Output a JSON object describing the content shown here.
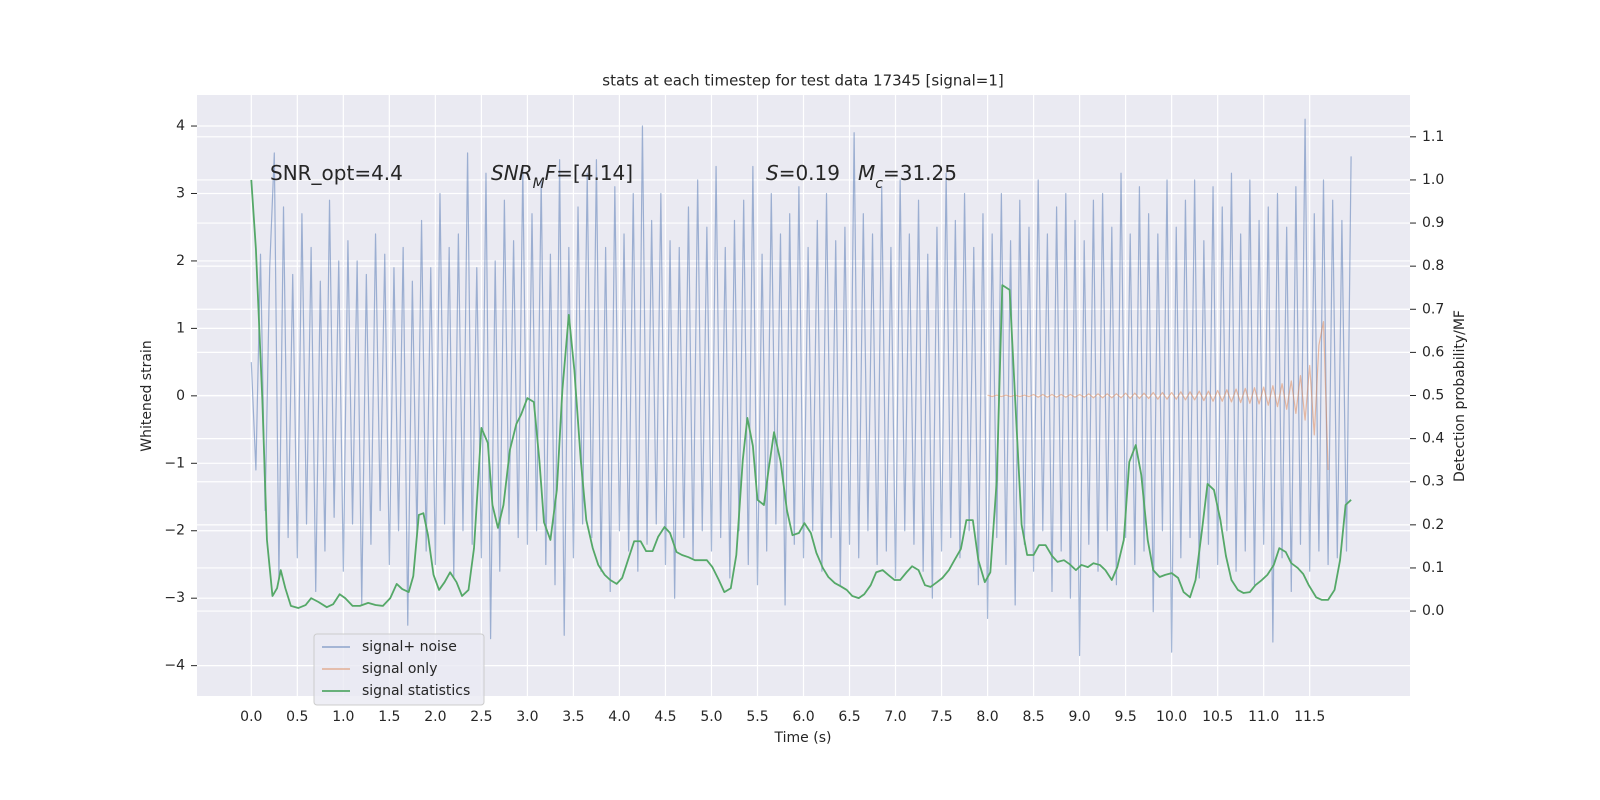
{
  "chart_data": {
    "type": "line",
    "title": "stats at each timestep for test data 17345 [signal=1]",
    "xlabel": "Time (s)",
    "ylabel": "Whitened strain",
    "y2label": "Detection probability/MF",
    "xlim": [
      -0.59,
      12.59
    ],
    "ylim": [
      -4.45,
      4.46
    ],
    "y2lim": [
      -0.197,
      1.197
    ],
    "xticks": [
      {
        "value": 0,
        "label": "0.0"
      },
      0.5,
      {
        "value": 1,
        "label": "1.0"
      },
      1.5,
      {
        "value": 2,
        "label": "2.0"
      },
      2.5,
      {
        "value": 3,
        "label": "3.0"
      },
      3.5,
      {
        "value": 4,
        "label": "4.0"
      },
      4.5,
      {
        "value": 5,
        "label": "5.0"
      },
      5.5,
      {
        "value": 6,
        "label": "6.0"
      },
      6.5,
      {
        "value": 7,
        "label": "7.0"
      },
      7.5,
      {
        "value": 8,
        "label": "8.0"
      },
      8.5,
      {
        "value": 9,
        "label": "9.0"
      },
      9.5,
      {
        "value": 10,
        "label": "10.0"
      },
      10.5,
      {
        "value": 11,
        "label": "11.0"
      },
      11.5
    ],
    "yticks": [
      {
        "value": -4,
        "label": "−4"
      },
      {
        "value": -3,
        "label": "−3"
      },
      {
        "value": -2,
        "label": "−2"
      },
      {
        "value": -1,
        "label": "−1"
      },
      0,
      1,
      2,
      3,
      4
    ],
    "y2ticks": [
      {
        "value": 0,
        "label": "0.0"
      },
      0.1,
      0.2,
      0.3,
      0.4,
      0.5,
      0.6,
      0.7,
      0.8,
      0.9,
      {
        "value": 1,
        "label": "1.0"
      },
      1.1
    ],
    "grid": true,
    "legend_loc": "lower left",
    "annotations": [
      {
        "parts": [
          {
            "text": "SNR_opt=4.4"
          }
        ]
      },
      {
        "parts": [
          {
            "text": "SNR",
            "style": "italic"
          },
          {
            "text": "M",
            "style": "italic-sub"
          },
          {
            "text": "F",
            "style": "italic"
          },
          {
            "text": "=[4.14]"
          }
        ]
      },
      {
        "parts": [
          {
            "text": "S",
            "style": "italic"
          },
          {
            "text": "=0.19"
          }
        ]
      },
      {
        "parts": [
          {
            "text": "M",
            "style": "italic"
          },
          {
            "text": "c",
            "style": "italic-sub"
          },
          {
            "text": "=31.25"
          }
        ]
      }
    ],
    "series": [
      {
        "name": "signal+ noise",
        "color": "#4c72b0",
        "alpha": 0.5,
        "x": [
          0,
          0.05,
          0.1,
          0.15,
          0.2,
          0.25,
          0.3,
          0.35,
          0.4,
          0.45,
          0.5,
          0.55,
          0.6,
          0.65,
          0.7,
          0.75,
          0.8,
          0.85,
          0.9,
          0.95,
          1,
          1.05,
          1.1,
          1.15,
          1.2,
          1.25,
          1.3,
          1.35,
          1.4,
          1.45,
          1.5,
          1.55,
          1.6,
          1.65,
          1.7,
          1.75,
          1.8,
          1.85,
          1.9,
          1.95,
          2,
          2.05,
          2.1,
          2.15,
          2.2,
          2.25,
          2.3,
          2.35,
          2.4,
          2.45,
          2.5,
          2.55,
          2.6,
          2.65,
          2.7,
          2.75,
          2.8,
          2.85,
          2.9,
          2.95,
          3,
          3.05,
          3.1,
          3.15,
          3.2,
          3.25,
          3.3,
          3.35,
          3.4,
          3.45,
          3.5,
          3.55,
          3.6,
          3.65,
          3.7,
          3.75,
          3.8,
          3.85,
          3.9,
          3.95,
          4,
          4.05,
          4.1,
          4.15,
          4.2,
          4.25,
          4.3,
          4.35,
          4.4,
          4.45,
          4.5,
          4.55,
          4.6,
          4.65,
          4.7,
          4.75,
          4.8,
          4.85,
          4.9,
          4.95,
          5,
          5.05,
          5.1,
          5.15,
          5.2,
          5.25,
          5.3,
          5.35,
          5.4,
          5.45,
          5.5,
          5.55,
          5.6,
          5.65,
          5.7,
          5.75,
          5.8,
          5.85,
          5.9,
          5.95,
          6,
          6.05,
          6.1,
          6.15,
          6.2,
          6.25,
          6.3,
          6.35,
          6.4,
          6.45,
          6.5,
          6.55,
          6.6,
          6.65,
          6.7,
          6.75,
          6.8,
          6.85,
          6.9,
          6.95,
          7,
          7.05,
          7.1,
          7.15,
          7.2,
          7.25,
          7.3,
          7.35,
          7.4,
          7.45,
          7.5,
          7.55,
          7.6,
          7.65,
          7.7,
          7.75,
          7.8,
          7.85,
          7.9,
          7.95,
          8,
          8.05,
          8.1,
          8.15,
          8.2,
          8.25,
          8.3,
          8.35,
          8.4,
          8.45,
          8.5,
          8.55,
          8.6,
          8.65,
          8.7,
          8.75,
          8.8,
          8.85,
          8.9,
          8.95,
          9,
          9.05,
          9.1,
          9.15,
          9.2,
          9.25,
          9.3,
          9.35,
          9.4,
          9.45,
          9.5,
          9.55,
          9.6,
          9.65,
          9.7,
          9.75,
          9.8,
          9.85,
          9.9,
          9.95,
          10,
          10.05,
          10.1,
          10.15,
          10.2,
          10.25,
          10.3,
          10.35,
          10.4,
          10.45,
          10.5,
          10.55,
          10.6,
          10.65,
          10.7,
          10.75,
          10.8,
          10.85,
          10.9,
          10.95,
          11,
          11.05,
          11.1,
          11.15,
          11.2,
          11.25,
          11.3,
          11.35,
          11.4,
          11.45,
          11.5,
          11.55,
          11.6,
          11.65,
          11.7,
          11.75,
          11.8,
          11.85,
          11.9,
          11.95
        ],
        "values": [
          0.5,
          -1.1,
          2.1,
          -1.7,
          1.9,
          3.6,
          -2.7,
          2.8,
          -2.1,
          1.8,
          -2.4,
          2.7,
          -1.9,
          2.2,
          -2.9,
          1.7,
          -2.3,
          2.9,
          -1.8,
          2.0,
          -2.6,
          2.3,
          -1.9,
          2.0,
          -3.1,
          1.8,
          -2.2,
          2.4,
          -1.7,
          2.1,
          -2.5,
          1.9,
          -2.0,
          2.2,
          -3.4,
          1.7,
          -2.1,
          2.6,
          -2.3,
          1.9,
          -2.5,
          3.0,
          -1.9,
          2.2,
          -2.7,
          2.4,
          -2.0,
          3.6,
          -2.2,
          1.9,
          -2.4,
          3.3,
          -3.6,
          2.0,
          -2.6,
          2.9,
          -1.9,
          2.3,
          -2.1,
          3.4,
          -2.2,
          2.7,
          -2.0,
          3.2,
          -2.5,
          2.1,
          -2.8,
          3.5,
          -3.55,
          2.2,
          -2.4,
          2.8,
          -1.9,
          3.3,
          -2.1,
          3.5,
          -2.6,
          2.2,
          -2.9,
          3.1,
          -2.0,
          2.4,
          -2.3,
          3.0,
          -2.6,
          4.0,
          -2.2,
          2.6,
          -1.9,
          3.0,
          -2.5,
          2.3,
          -3.0,
          2.2,
          -2.1,
          2.8,
          -2.4,
          3.2,
          -2.0,
          2.5,
          -2.3,
          3.4,
          -2.1,
          2.2,
          -2.7,
          2.6,
          -2.0,
          2.9,
          -2.5,
          3.4,
          -2.8,
          2.1,
          -2.3,
          3.0,
          -1.9,
          2.4,
          -3.1,
          2.7,
          -2.2,
          3.1,
          -2.4,
          2.2,
          -2.0,
          2.6,
          -2.6,
          3.0,
          -2.1,
          2.3,
          -2.8,
          2.5,
          -2.2,
          3.9,
          -2.4,
          2.7,
          -2.0,
          2.4,
          -2.5,
          3.1,
          -2.3,
          2.2,
          -2.7,
          3.2,
          -2.0,
          2.4,
          -2.2,
          2.9,
          -2.6,
          2.1,
          -3.0,
          2.5,
          -2.3,
          3.3,
          -2.1,
          2.6,
          -2.4,
          3.0,
          -2.0,
          2.2,
          -2.8,
          2.7,
          -3.3,
          2.4,
          -2.1,
          3.0,
          -2.5,
          2.3,
          -3.1,
          2.9,
          -2.2,
          2.5,
          -2.6,
          3.2,
          -2.0,
          2.4,
          -2.9,
          2.8,
          -2.3,
          3.0,
          -3.0,
          2.6,
          -3.85,
          2.3,
          -2.2,
          2.9,
          -2.6,
          3.0,
          -2.0,
          2.5,
          -2.8,
          3.3,
          -2.1,
          2.4,
          -2.5,
          3.1,
          -2.3,
          2.7,
          -3.2,
          2.4,
          -2.0,
          3.2,
          -3.8,
          2.5,
          -2.4,
          2.9,
          -2.1,
          3.2,
          -2.7,
          2.3,
          -2.2,
          3.1,
          -2.5,
          2.8,
          -2.0,
          3.3,
          -2.6,
          2.4,
          -2.3,
          3.2,
          -2.8,
          2.6,
          -2.2,
          2.8,
          -3.65,
          3.0,
          -2.4,
          2.5,
          -2.9,
          3.1,
          -2.2,
          4.1,
          -2.6,
          2.7,
          -2.3,
          3.2,
          -2.5,
          2.9,
          -2.4,
          2.6,
          -2.3,
          3.55
        ]
      },
      {
        "name": "signal only",
        "color": "#dd8452",
        "alpha": 0.5,
        "x": [
          8,
          8.05,
          8.1,
          8.15,
          8.2,
          8.25,
          8.3,
          8.35,
          8.4,
          8.45,
          8.5,
          8.55,
          8.6,
          8.65,
          8.7,
          8.75,
          8.8,
          8.85,
          8.9,
          8.95,
          9,
          9.05,
          9.1,
          9.15,
          9.2,
          9.25,
          9.3,
          9.35,
          9.4,
          9.45,
          9.5,
          9.55,
          9.6,
          9.65,
          9.7,
          9.75,
          9.8,
          9.85,
          9.9,
          9.95,
          10,
          10.05,
          10.1,
          10.15,
          10.2,
          10.25,
          10.3,
          10.35,
          10.4,
          10.45,
          10.5,
          10.55,
          10.6,
          10.65,
          10.7,
          10.75,
          10.8,
          10.85,
          10.9,
          10.95,
          11,
          11.05,
          11.1,
          11.15,
          11.2,
          11.25,
          11.3,
          11.35,
          11.4,
          11.45,
          11.5,
          11.55,
          11.6,
          11.65,
          11.7
        ],
        "values": [
          0.01,
          -0.01,
          0.01,
          -0.01,
          0.01,
          -0.01,
          0.01,
          -0.01,
          0.01,
          -0.01,
          0.02,
          -0.02,
          0.02,
          -0.02,
          0.02,
          -0.02,
          0.02,
          -0.02,
          0.02,
          -0.02,
          0.02,
          -0.02,
          0.03,
          -0.03,
          0.03,
          -0.03,
          0.03,
          -0.03,
          0.03,
          -0.03,
          0.04,
          -0.04,
          0.04,
          -0.04,
          0.04,
          -0.04,
          0.05,
          -0.05,
          0.05,
          -0.05,
          0.05,
          -0.05,
          0.06,
          -0.06,
          0.06,
          -0.06,
          0.07,
          -0.07,
          0.07,
          -0.08,
          0.08,
          -0.08,
          0.09,
          -0.09,
          0.1,
          -0.1,
          0.11,
          -0.11,
          0.12,
          -0.12,
          0.13,
          -0.14,
          0.15,
          -0.16,
          0.18,
          -0.2,
          0.22,
          -0.26,
          0.3,
          -0.36,
          0.45,
          -0.58,
          0.75,
          1.1,
          -1.1
        ]
      },
      {
        "name": "signal statistics",
        "color": "#55a868",
        "axis": "y2",
        "x": [
          0,
          0.05,
          0.12,
          0.17,
          0.23,
          0.28,
          0.32,
          0.37,
          0.43,
          0.51,
          0.59,
          0.65,
          0.73,
          0.82,
          0.89,
          0.96,
          1.02,
          1.1,
          1.18,
          1.27,
          1.35,
          1.43,
          1.51,
          1.58,
          1.64,
          1.71,
          1.76,
          1.82,
          1.87,
          1.92,
          1.98,
          2.04,
          2.1,
          2.16,
          2.23,
          2.29,
          2.36,
          2.42,
          2.5,
          2.57,
          2.62,
          2.68,
          2.74,
          2.81,
          2.88,
          2.93,
          3.0,
          3.07,
          3.13,
          3.18,
          3.25,
          3.32,
          3.38,
          3.45,
          3.51,
          3.58,
          3.64,
          3.71,
          3.77,
          3.84,
          3.9,
          3.97,
          4.03,
          4.1,
          4.16,
          4.23,
          4.29,
          4.36,
          4.42,
          4.49,
          4.55,
          4.62,
          4.68,
          4.75,
          4.82,
          4.88,
          4.95,
          5.01,
          5.08,
          5.14,
          5.21,
          5.27,
          5.34,
          5.39,
          5.45,
          5.5,
          5.57,
          5.62,
          5.68,
          5.75,
          5.82,
          5.88,
          5.95,
          6.01,
          6.08,
          6.14,
          6.21,
          6.27,
          6.34,
          6.4,
          6.47,
          6.53,
          6.6,
          6.66,
          6.73,
          6.79,
          6.86,
          6.92,
          6.99,
          7.05,
          7.12,
          7.18,
          7.25,
          7.32,
          7.38,
          7.45,
          7.51,
          7.58,
          7.64,
          7.71,
          7.77,
          7.84,
          7.9,
          7.97,
          8.03,
          8.1,
          8.16,
          8.24,
          8.3,
          8.37,
          8.43,
          8.5,
          8.56,
          8.63,
          8.7,
          8.76,
          8.83,
          8.89,
          8.96,
          9.02,
          9.09,
          9.15,
          9.22,
          9.28,
          9.35,
          9.41,
          9.48,
          9.54,
          9.61,
          9.67,
          9.74,
          9.8,
          9.87,
          9.93,
          10.0,
          10.07,
          10.13,
          10.2,
          10.26,
          10.33,
          10.39,
          10.46,
          10.53,
          10.59,
          10.65,
          10.72,
          10.78,
          10.85,
          10.91,
          10.98,
          11.04,
          11.11,
          11.17,
          11.24,
          11.3,
          11.37,
          11.43,
          11.49,
          11.57,
          11.63,
          11.7,
          11.77,
          11.83,
          11.89,
          11.95
        ],
        "values": [
          1.0,
          0.84,
          0.49,
          0.165,
          0.035,
          0.053,
          0.095,
          0.053,
          0.012,
          0.007,
          0.014,
          0.03,
          0.021,
          0.009,
          0.016,
          0.039,
          0.03,
          0.012,
          0.012,
          0.019,
          0.014,
          0.012,
          0.03,
          0.063,
          0.051,
          0.044,
          0.081,
          0.223,
          0.227,
          0.176,
          0.084,
          0.049,
          0.067,
          0.09,
          0.067,
          0.035,
          0.049,
          0.146,
          0.425,
          0.39,
          0.246,
          0.193,
          0.246,
          0.374,
          0.434,
          0.455,
          0.494,
          0.485,
          0.35,
          0.206,
          0.165,
          0.281,
          0.513,
          0.687,
          0.559,
          0.35,
          0.211,
          0.146,
          0.107,
          0.084,
          0.072,
          0.063,
          0.077,
          0.123,
          0.162,
          0.162,
          0.139,
          0.139,
          0.172,
          0.195,
          0.181,
          0.137,
          0.13,
          0.125,
          0.118,
          0.118,
          0.118,
          0.102,
          0.072,
          0.044,
          0.053,
          0.13,
          0.35,
          0.448,
          0.383,
          0.258,
          0.246,
          0.327,
          0.415,
          0.348,
          0.234,
          0.176,
          0.181,
          0.204,
          0.181,
          0.135,
          0.1,
          0.079,
          0.065,
          0.058,
          0.049,
          0.035,
          0.03,
          0.039,
          0.06,
          0.09,
          0.095,
          0.084,
          0.072,
          0.072,
          0.09,
          0.104,
          0.095,
          0.06,
          0.056,
          0.067,
          0.077,
          0.095,
          0.118,
          0.144,
          0.211,
          0.211,
          0.118,
          0.067,
          0.09,
          0.304,
          0.756,
          0.745,
          0.49,
          0.2,
          0.13,
          0.13,
          0.153,
          0.153,
          0.128,
          0.114,
          0.118,
          0.109,
          0.095,
          0.107,
          0.102,
          0.111,
          0.107,
          0.095,
          0.072,
          0.102,
          0.165,
          0.346,
          0.385,
          0.316,
          0.165,
          0.095,
          0.079,
          0.084,
          0.088,
          0.077,
          0.044,
          0.032,
          0.072,
          0.188,
          0.295,
          0.281,
          0.211,
          0.128,
          0.072,
          0.049,
          0.042,
          0.044,
          0.06,
          0.072,
          0.084,
          0.107,
          0.146,
          0.137,
          0.111,
          0.1,
          0.086,
          0.06,
          0.032,
          0.026,
          0.026,
          0.049,
          0.118,
          0.246,
          0.258
        ]
      }
    ]
  }
}
